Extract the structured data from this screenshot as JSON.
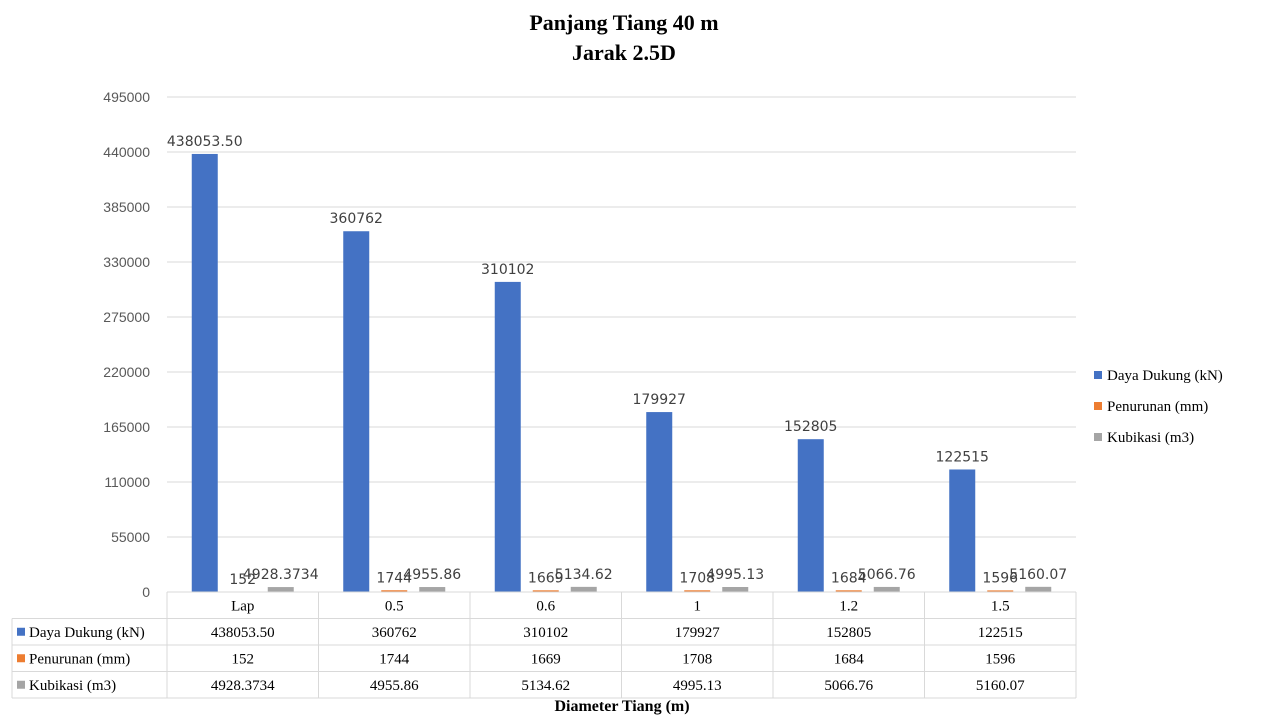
{
  "chart_data": {
    "type": "bar",
    "title": "Panjang Tiang 40 m",
    "subtitle": "Jarak 2.5D",
    "xlabel": "Diameter Tiang (m)",
    "ylabel": "",
    "categories": [
      "Lap",
      "0.5",
      "0.6",
      "1",
      "1.2",
      "1.5"
    ],
    "ylim": [
      0,
      495000
    ],
    "yticks": [
      "0",
      "55000",
      "110000",
      "165000",
      "220000",
      "275000",
      "330000",
      "385000",
      "440000",
      "495000"
    ],
    "grid": true,
    "legend_position": "right",
    "data_table": true,
    "series": [
      {
        "name": "Daya Dukung (kN)",
        "color": "#4472C4",
        "values": [
          438053.5,
          360762,
          310102,
          179927,
          152805,
          122515
        ],
        "labels": [
          "438053.50",
          "360762",
          "310102",
          "179927",
          "152805",
          "122515"
        ]
      },
      {
        "name": "Penurunan (mm)",
        "color": "#ED7D31",
        "values": [
          152,
          1744,
          1669,
          1708,
          1684,
          1596
        ],
        "labels": [
          "152",
          "1744",
          "1669",
          "1708",
          "1684",
          "1596"
        ]
      },
      {
        "name": "Kubikasi (m3)",
        "color": "#A5A5A5",
        "values": [
          4928.3734,
          4955.86,
          5134.62,
          4995.13,
          5066.76,
          5160.07
        ],
        "labels": [
          "4928.3734",
          "4955.86",
          "5134.62",
          "4995.13",
          "5066.76",
          "5160.07"
        ]
      }
    ]
  }
}
